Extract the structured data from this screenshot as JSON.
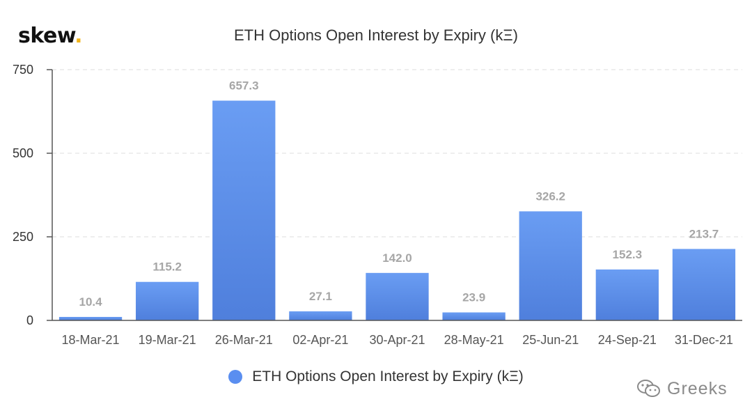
{
  "brand": {
    "name": "skew",
    "dot": "."
  },
  "watermark": {
    "text": "Greeks",
    "icon": "wechat-icon"
  },
  "colors": {
    "bar_top": "#6a9df3",
    "bar_bottom": "#4f7fdc",
    "legend": "#5a8ef0",
    "accent": "#f2b51c"
  },
  "chart_data": {
    "type": "bar",
    "title": "ETH Options Open Interest by Expiry (kΞ)",
    "categories": [
      "18-Mar-21",
      "19-Mar-21",
      "26-Mar-21",
      "02-Apr-21",
      "30-Apr-21",
      "28-May-21",
      "25-Jun-21",
      "24-Sep-21",
      "31-Dec-21"
    ],
    "series": [
      {
        "name": "ETH Options Open Interest by Expiry (kΞ)",
        "values": [
          10.4,
          115.2,
          657.3,
          27.1,
          142.0,
          23.9,
          326.2,
          152.3,
          213.7
        ],
        "labels": [
          "10.4",
          "115.2",
          "657.3",
          "27.1",
          "142.0",
          "23.9",
          "326.2",
          "152.3",
          "213.7"
        ]
      }
    ],
    "ylim": [
      0,
      750
    ],
    "yticks": [
      "0",
      "250",
      "500",
      "750"
    ],
    "grid": true,
    "legend": "bottom-center",
    "xlabel": "",
    "ylabel": ""
  }
}
